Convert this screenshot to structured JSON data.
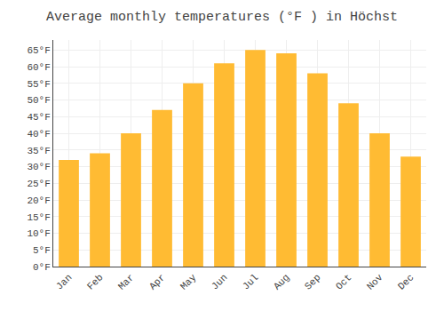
{
  "chart_data": {
    "type": "bar",
    "title": "Average monthly temperatures (°F ) in Höchst",
    "categories": [
      "Jan",
      "Feb",
      "Mar",
      "Apr",
      "May",
      "Jun",
      "Jul",
      "Aug",
      "Sep",
      "Oct",
      "Nov",
      "Dec"
    ],
    "values": [
      32,
      34,
      40,
      47,
      55,
      61,
      65,
      64,
      58,
      49,
      40,
      33
    ],
    "color": "#FFBB33",
    "ylim": [
      0,
      68
    ],
    "yticks": [
      {
        "value": 0,
        "label": "0°F"
      },
      {
        "value": 5,
        "label": "5°F"
      },
      {
        "value": 10,
        "label": "10°F"
      },
      {
        "value": 15,
        "label": "15°F"
      },
      {
        "value": 20,
        "label": "20°F"
      },
      {
        "value": 25,
        "label": "25°F"
      },
      {
        "value": 30,
        "label": "30°F"
      },
      {
        "value": 35,
        "label": "35°F"
      },
      {
        "value": 40,
        "label": "40°F"
      },
      {
        "value": 45,
        "label": "45°F"
      },
      {
        "value": 50,
        "label": "50°F"
      },
      {
        "value": 55,
        "label": "55°F"
      },
      {
        "value": 60,
        "label": "60°F"
      },
      {
        "value": 65,
        "label": "65°F"
      }
    ],
    "grid": true
  }
}
